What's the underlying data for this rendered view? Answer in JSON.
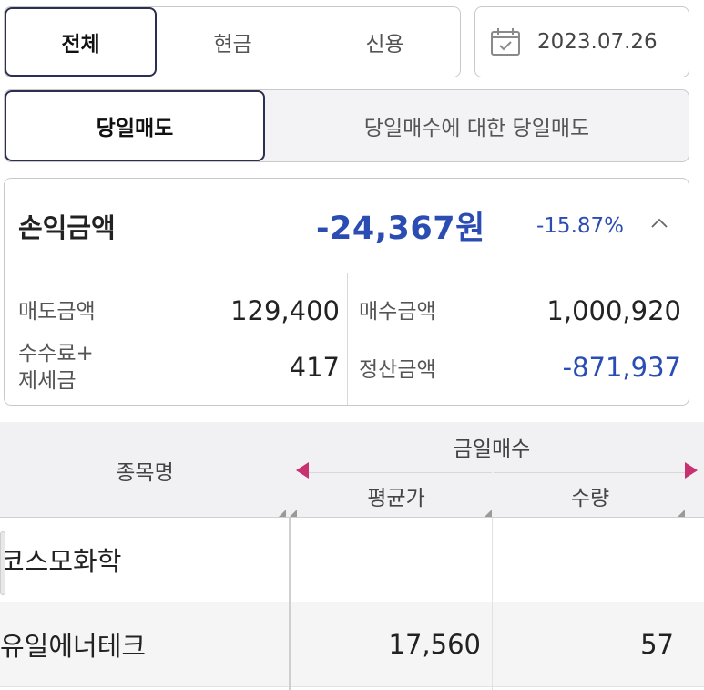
{
  "account_type_tabs": [
    {
      "label": "전체",
      "active": true
    },
    {
      "label": "현금",
      "active": false
    },
    {
      "label": "신용",
      "active": false
    }
  ],
  "date": "2023.07.26",
  "sell_type_tabs": [
    {
      "label": "당일매도",
      "active": true
    },
    {
      "label": "당일매수에 대한 당일매도",
      "active": false
    }
  ],
  "summary": {
    "pl_label": "손익금액",
    "pl_value": "-24,367원",
    "pl_rate": "-15.87%",
    "sell_amount_label": "매도금액",
    "sell_amount": "129,400",
    "buy_amount_label": "매수금액",
    "buy_amount": "1,000,920",
    "fee_tax_label_line1": "수수료+",
    "fee_tax_label_line2": "제세금",
    "fee_tax": "417",
    "settlement_label": "정산금액",
    "settlement": "-871,937"
  },
  "table": {
    "col_name": "종목명",
    "group_header": "금일매수",
    "col_avg_price": "평균가",
    "col_qty": "수량",
    "rows": [
      {
        "name": "코스모화학",
        "avg_price": "",
        "qty": ""
      },
      {
        "name": "유일에너테크",
        "avg_price": "17,560",
        "qty": "57"
      }
    ]
  },
  "colors": {
    "negative": "#2a4cb3",
    "active_border": "#2d2f4f",
    "scroll_arrow": "#c8306f"
  }
}
